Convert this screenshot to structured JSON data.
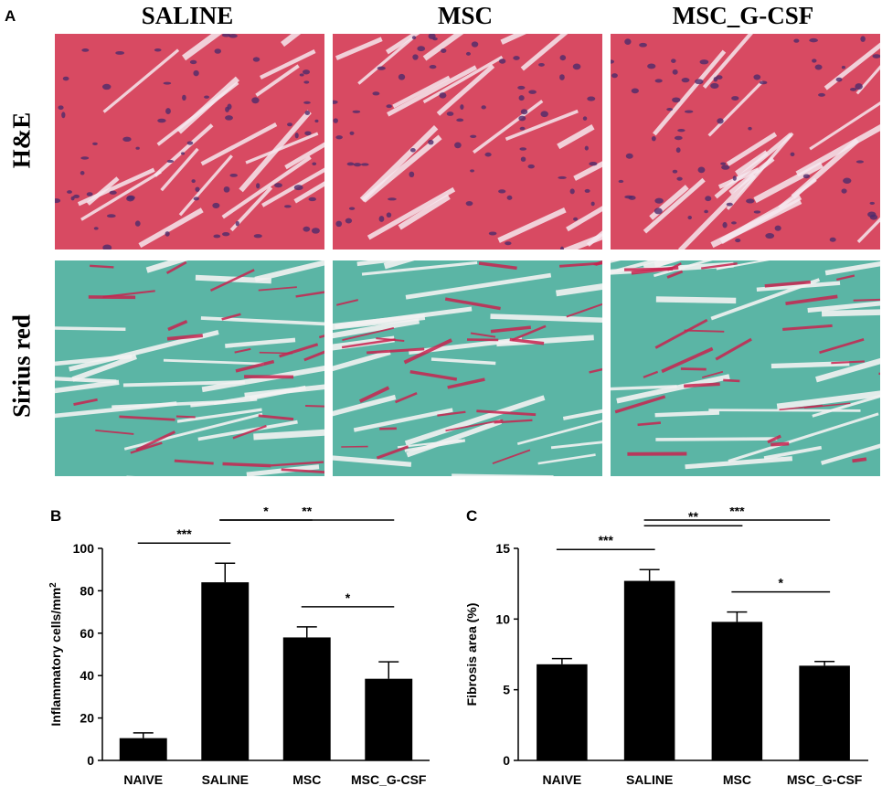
{
  "figure": {
    "panel_labels": {
      "a": "A",
      "b": "B",
      "c": "C"
    },
    "column_titles": [
      "SALINE",
      "MSC",
      "MSC_G-CSF"
    ],
    "row_titles": [
      "H&E",
      "Sirius red"
    ],
    "he_color": "#d84a62",
    "he_nuclei_color": "#4d2a6b",
    "sirius_base_color": "#5bb5a5",
    "sirius_red_color": "#c8234f"
  },
  "chart_data": [
    {
      "type": "bar",
      "panel": "B",
      "categories": [
        "NAIVE",
        "SALINE",
        "MSC",
        "MSC_G-CSF"
      ],
      "values": [
        10.5,
        84,
        58,
        38.5
      ],
      "errors": [
        2.5,
        9,
        5,
        8
      ],
      "ylabel": "Inflammatory cells/mm²",
      "ylabel_main": "Inflammatory cells/mm",
      "ylabel_sup": "2",
      "ylim": [
        0,
        100
      ],
      "yticks": [
        0,
        20,
        40,
        60,
        80,
        100
      ],
      "bar_color": "#000000",
      "significance": [
        {
          "from": 0,
          "to": 1,
          "label": "***"
        },
        {
          "from": 1,
          "to": 2,
          "label": "*"
        },
        {
          "from": 1,
          "to": 3,
          "label": "**"
        },
        {
          "from": 2,
          "to": 3,
          "label": "*"
        }
      ]
    },
    {
      "type": "bar",
      "panel": "C",
      "categories": [
        "NAIVE",
        "SALINE",
        "MSC",
        "MSC_G-CSF"
      ],
      "values": [
        6.8,
        12.7,
        9.8,
        6.7
      ],
      "errors": [
        0.4,
        0.8,
        0.7,
        0.3
      ],
      "ylabel": "Fibrosis area (%)",
      "ylim": [
        0,
        15
      ],
      "yticks": [
        0,
        5,
        10,
        15
      ],
      "bar_color": "#000000",
      "significance": [
        {
          "from": 0,
          "to": 1,
          "label": "***"
        },
        {
          "from": 1,
          "to": 2,
          "label": "**"
        },
        {
          "from": 1,
          "to": 3,
          "label": "***"
        },
        {
          "from": 2,
          "to": 3,
          "label": "*"
        }
      ]
    }
  ]
}
